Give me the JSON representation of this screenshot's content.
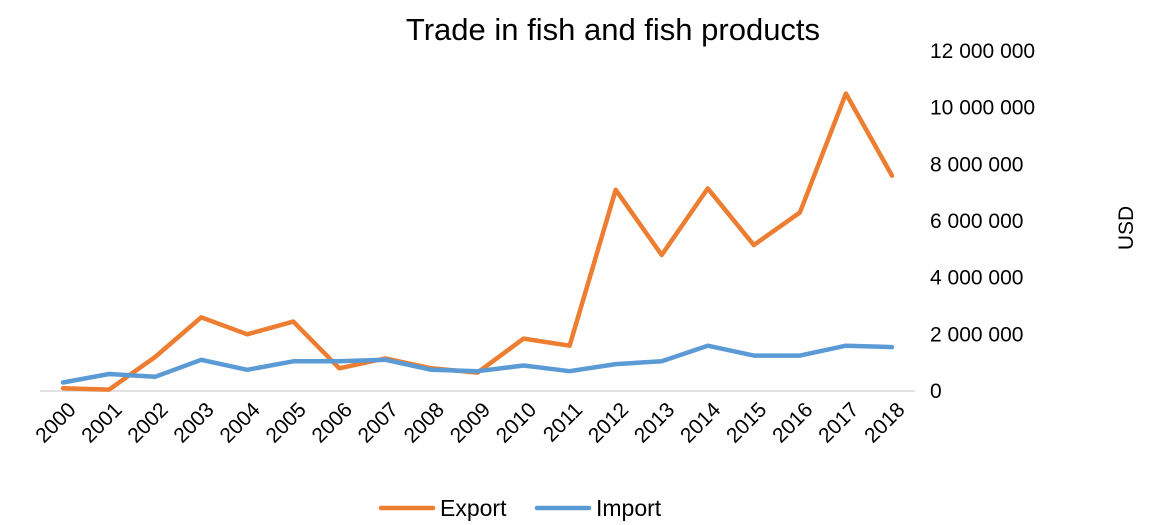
{
  "chart_data": {
    "type": "line",
    "title": "Trade in fish and fish products",
    "ylabel": "USD",
    "xlabel": "",
    "categories": [
      "2000",
      "2001",
      "2002",
      "2003",
      "2004",
      "2005",
      "2006",
      "2007",
      "2008",
      "2009",
      "2010",
      "2011",
      "2012",
      "2013",
      "2014",
      "2015",
      "2016",
      "2017",
      "2018"
    ],
    "ylim": [
      0,
      12000000
    ],
    "yticks": [
      0,
      2000000,
      4000000,
      6000000,
      8000000,
      10000000,
      12000000
    ],
    "ytick_labels": [
      "0",
      "2 000 000",
      "4 000 000",
      "6 000 000",
      "8 000 000",
      "10 000 000",
      "12 000 000"
    ],
    "y_axis_side": "right",
    "grid": false,
    "legend_position": "bottom",
    "series": [
      {
        "name": "Export",
        "color": "#ED7D31",
        "values": [
          100000,
          50000,
          1200000,
          2600000,
          2000000,
          2450000,
          800000,
          1150000,
          800000,
          650000,
          1850000,
          1600000,
          7100000,
          4800000,
          7150000,
          5150000,
          6300000,
          10500000,
          7600000
        ]
      },
      {
        "name": "Import",
        "color": "#5B9BD5",
        "values": [
          300000,
          600000,
          500000,
          1100000,
          750000,
          1050000,
          1050000,
          1100000,
          750000,
          700000,
          900000,
          700000,
          950000,
          1050000,
          1600000,
          1250000,
          1250000,
          1600000,
          1550000
        ]
      }
    ]
  }
}
